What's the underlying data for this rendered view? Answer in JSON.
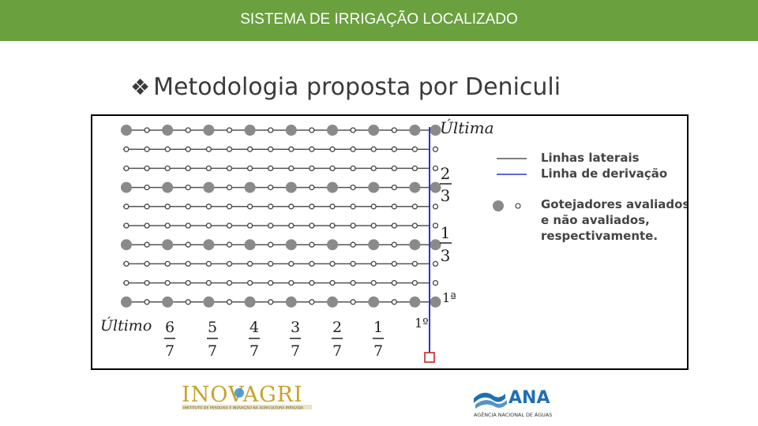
{
  "header": {
    "title": "SISTEMA DE IRRIGAÇÃO LOCALIZADO",
    "bg_color": "#6aa03e"
  },
  "slide": {
    "bullet": "❖",
    "title": "Metodologia proposta por Deniculi"
  },
  "figure": {
    "label_ultima": "Última",
    "label_ultimo": "Último",
    "row_fractions": [
      {
        "num": "2",
        "den": "3"
      },
      {
        "num": "1",
        "den": "3"
      }
    ],
    "label_first_row": "1ª",
    "label_first_col": "1º",
    "col_fractions": [
      {
        "num": "6",
        "den": "7"
      },
      {
        "num": "5",
        "den": "7"
      },
      {
        "num": "4",
        "den": "7"
      },
      {
        "num": "3",
        "den": "7"
      },
      {
        "num": "2",
        "den": "7"
      },
      {
        "num": "1",
        "den": "7"
      }
    ],
    "legend": {
      "lateral": "Linhas laterais",
      "derivacao": "Linha de derivação",
      "emitters_line1": "Gotejadores avaliados",
      "emitters_line2": "e não avaliados,",
      "emitters_line3": "respectivamente."
    },
    "colors": {
      "lateral": "#555555",
      "derivacao": "#2b35c9",
      "evaluated": "#8a8a8a",
      "valve": "#cc2222"
    }
  },
  "logos": {
    "inovagri": {
      "name": "INOVAGRI",
      "tagline": "INSTITUTO DE PESQUISA E INOVAÇÃO NA AGRICULTURA IRRIGADA"
    },
    "ana": {
      "name": "ANA",
      "tagline": "AGÊNCIA NACIONAL DE ÁGUAS"
    }
  }
}
